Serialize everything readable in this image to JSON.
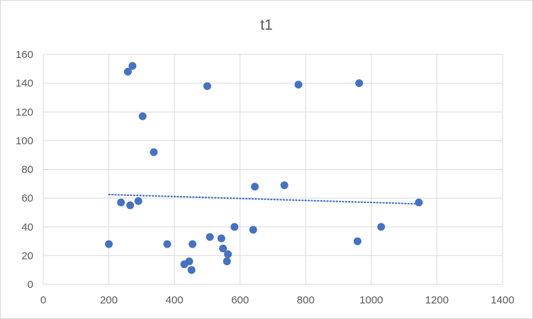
{
  "chart_data": {
    "type": "scatter",
    "title": "t1",
    "xlabel": "",
    "ylabel": "",
    "xlim": [
      0,
      1400
    ],
    "ylim": [
      0,
      160
    ],
    "x_ticks": [
      0,
      200,
      400,
      600,
      800,
      1000,
      1200,
      1400
    ],
    "y_ticks": [
      0,
      20,
      40,
      60,
      80,
      100,
      120,
      140,
      160
    ],
    "grid": true,
    "legend": "none",
    "colors": {
      "points": "#4472c4",
      "trendline": "#4472c4",
      "grid": "#d9d9d9",
      "text": "#595959"
    },
    "series": [
      {
        "points": [
          [
            200,
            28
          ],
          [
            237,
            57
          ],
          [
            258,
            148
          ],
          [
            265,
            55
          ],
          [
            272,
            152
          ],
          [
            290,
            58
          ],
          [
            303,
            117
          ],
          [
            337,
            92
          ],
          [
            378,
            28
          ],
          [
            430,
            14
          ],
          [
            445,
            16
          ],
          [
            452,
            10
          ],
          [
            455,
            28
          ],
          [
            500,
            138
          ],
          [
            508,
            33
          ],
          [
            543,
            32
          ],
          [
            548,
            25
          ],
          [
            560,
            16
          ],
          [
            563,
            21
          ],
          [
            583,
            40
          ],
          [
            640,
            38
          ],
          [
            645,
            68
          ],
          [
            735,
            69
          ],
          [
            778,
            139
          ],
          [
            958,
            30
          ],
          [
            963,
            140
          ],
          [
            1030,
            40
          ],
          [
            1145,
            57
          ]
        ]
      }
    ],
    "trendline": {
      "type": "linear",
      "style": "dotted",
      "x": [
        200,
        1145
      ],
      "y": [
        62.5,
        56
      ]
    }
  }
}
